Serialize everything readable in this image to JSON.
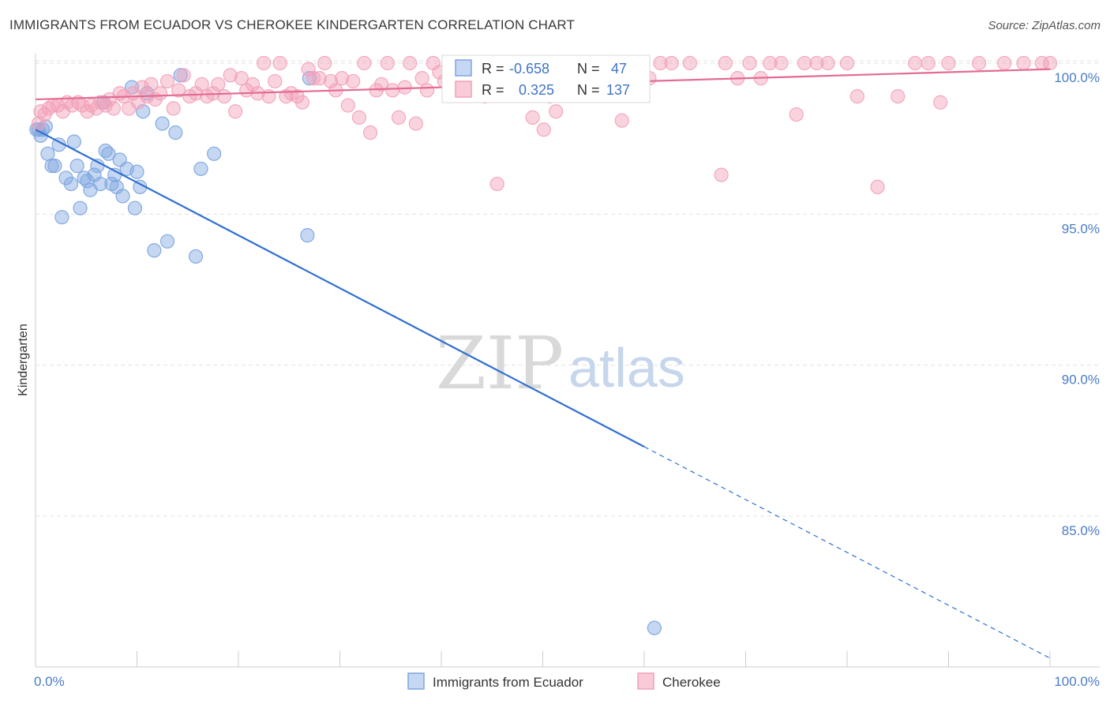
{
  "title": "IMMIGRANTS FROM ECUADOR VS CHEROKEE KINDERGARTEN CORRELATION CHART",
  "source": "Source: ZipAtlas.com",
  "watermark": {
    "zip": "ZIP",
    "atlas": "atlas"
  },
  "colors": {
    "series1": "#7ea6e0",
    "series1_line": "#2f6fd0",
    "series2": "#f2a0b8",
    "series2_line": "#e36b93",
    "tick": "#4a7cc6",
    "grid": "#e0e0e0"
  },
  "legend_box": {
    "r_label": "R =",
    "n_label": "N =",
    "rows": [
      {
        "r": "-0.658",
        "n": "47"
      },
      {
        "r": "0.325",
        "n": "137"
      }
    ]
  },
  "chart_data": {
    "type": "scatter",
    "title": "IMMIGRANTS FROM ECUADOR VS CHEROKEE KINDERGARTEN CORRELATION CHART",
    "xlabel": "",
    "ylabel": "Kindergarten",
    "xlim": [
      0,
      100
    ],
    "ylim": [
      80,
      100.8
    ],
    "x_tick_labels": [
      "0.0%",
      "100.0%"
    ],
    "y_ticks": [
      100,
      95,
      90,
      85
    ],
    "y_tick_labels": [
      "100.0%",
      "95.0%",
      "90.0%",
      "85.0%"
    ],
    "grid": true,
    "legend": "bottom-center",
    "series": [
      {
        "name": "Immigrants from Ecuador",
        "r": -0.658,
        "n": 47,
        "trend": {
          "x0": 0,
          "y0": 97.8,
          "x1": 100,
          "y1": 80.3,
          "solid_until_x": 60
        },
        "points": [
          [
            0.3,
            97.8
          ],
          [
            0.5,
            97.6
          ],
          [
            0.7,
            97.8
          ],
          [
            1.2,
            97.0
          ],
          [
            1.6,
            96.6
          ],
          [
            1.9,
            96.6
          ],
          [
            2.3,
            97.3
          ],
          [
            2.6,
            94.9
          ],
          [
            3.0,
            96.2
          ],
          [
            3.5,
            96.0
          ],
          [
            3.8,
            97.4
          ],
          [
            4.1,
            96.6
          ],
          [
            4.4,
            95.2
          ],
          [
            4.8,
            96.2
          ],
          [
            5.1,
            96.1
          ],
          [
            5.4,
            95.8
          ],
          [
            5.8,
            96.3
          ],
          [
            6.1,
            96.6
          ],
          [
            6.4,
            96.0
          ],
          [
            6.7,
            98.7
          ],
          [
            6.9,
            97.1
          ],
          [
            7.2,
            97.0
          ],
          [
            7.5,
            96.0
          ],
          [
            7.8,
            96.3
          ],
          [
            8.0,
            95.9
          ],
          [
            8.3,
            96.8
          ],
          [
            8.6,
            95.6
          ],
          [
            9.0,
            96.5
          ],
          [
            9.5,
            99.2
          ],
          [
            9.8,
            95.2
          ],
          [
            10.0,
            96.4
          ],
          [
            10.3,
            95.9
          ],
          [
            10.6,
            98.4
          ],
          [
            11.0,
            99.0
          ],
          [
            11.7,
            93.8
          ],
          [
            12.5,
            98.0
          ],
          [
            13.0,
            94.1
          ],
          [
            13.8,
            97.7
          ],
          [
            14.3,
            99.6
          ],
          [
            15.8,
            93.6
          ],
          [
            16.3,
            96.5
          ],
          [
            17.6,
            97.0
          ],
          [
            26.8,
            94.3
          ],
          [
            27.0,
            99.5
          ],
          [
            61.0,
            81.3
          ],
          [
            1.0,
            97.9
          ],
          [
            0.1,
            97.8
          ]
        ]
      },
      {
        "name": "Cherokee",
        "r": 0.325,
        "n": 137,
        "trend": {
          "x0": 0,
          "y0": 98.8,
          "x1": 100,
          "y1": 99.8
        },
        "points": [
          [
            0.3,
            98.0
          ],
          [
            0.5,
            98.4
          ],
          [
            0.9,
            98.3
          ],
          [
            1.3,
            98.5
          ],
          [
            1.7,
            98.6
          ],
          [
            2.2,
            98.6
          ],
          [
            2.7,
            98.4
          ],
          [
            3.1,
            98.7
          ],
          [
            3.6,
            98.6
          ],
          [
            4.2,
            98.7
          ],
          [
            4.6,
            98.6
          ],
          [
            5.1,
            98.4
          ],
          [
            5.5,
            98.6
          ],
          [
            6.0,
            98.5
          ],
          [
            6.4,
            98.7
          ],
          [
            6.9,
            98.6
          ],
          [
            7.3,
            98.8
          ],
          [
            7.7,
            98.5
          ],
          [
            8.3,
            99.0
          ],
          [
            8.7,
            98.9
          ],
          [
            9.2,
            98.5
          ],
          [
            9.6,
            99.0
          ],
          [
            10.1,
            98.7
          ],
          [
            10.5,
            99.2
          ],
          [
            11.0,
            98.9
          ],
          [
            11.4,
            99.3
          ],
          [
            11.8,
            98.8
          ],
          [
            12.3,
            99.0
          ],
          [
            13.0,
            99.4
          ],
          [
            13.6,
            98.5
          ],
          [
            14.1,
            99.1
          ],
          [
            14.6,
            99.6
          ],
          [
            15.2,
            98.9
          ],
          [
            15.8,
            99.0
          ],
          [
            16.4,
            99.3
          ],
          [
            16.9,
            98.9
          ],
          [
            17.5,
            99.0
          ],
          [
            18.0,
            99.3
          ],
          [
            18.6,
            98.9
          ],
          [
            19.2,
            99.6
          ],
          [
            19.7,
            98.4
          ],
          [
            20.3,
            99.5
          ],
          [
            20.8,
            99.1
          ],
          [
            21.4,
            99.3
          ],
          [
            21.9,
            99.0
          ],
          [
            22.5,
            100.0
          ],
          [
            23.0,
            98.9
          ],
          [
            23.6,
            99.4
          ],
          [
            24.1,
            100.0
          ],
          [
            24.7,
            98.9
          ],
          [
            25.2,
            99.0
          ],
          [
            25.8,
            98.9
          ],
          [
            26.3,
            98.7
          ],
          [
            26.9,
            99.8
          ],
          [
            27.4,
            99.5
          ],
          [
            28.0,
            99.5
          ],
          [
            28.5,
            100.0
          ],
          [
            29.1,
            99.4
          ],
          [
            29.6,
            99.1
          ],
          [
            30.2,
            99.5
          ],
          [
            30.8,
            98.6
          ],
          [
            31.3,
            99.4
          ],
          [
            31.9,
            98.2
          ],
          [
            32.4,
            100.0
          ],
          [
            33.0,
            97.7
          ],
          [
            33.6,
            99.1
          ],
          [
            34.1,
            99.3
          ],
          [
            34.7,
            100.0
          ],
          [
            35.2,
            99.1
          ],
          [
            35.8,
            98.2
          ],
          [
            36.4,
            99.2
          ],
          [
            36.9,
            100.0
          ],
          [
            37.5,
            98.0
          ],
          [
            38.1,
            99.5
          ],
          [
            38.6,
            99.1
          ],
          [
            39.2,
            100.0
          ],
          [
            39.8,
            99.7
          ],
          [
            40.3,
            99.4
          ],
          [
            40.9,
            99.2
          ],
          [
            41.5,
            99.8
          ],
          [
            42.0,
            100.0
          ],
          [
            42.6,
            99.4
          ],
          [
            43.2,
            100.0
          ],
          [
            43.7,
            99.0
          ],
          [
            44.3,
            98.9
          ],
          [
            44.9,
            100.0
          ],
          [
            45.5,
            96.0
          ],
          [
            46.0,
            100.0
          ],
          [
            46.6,
            99.1
          ],
          [
            47.2,
            99.4
          ],
          [
            47.8,
            100.0
          ],
          [
            48.4,
            99.3
          ],
          [
            49.0,
            98.2
          ],
          [
            49.5,
            100.0
          ],
          [
            50.1,
            97.8
          ],
          [
            50.7,
            98.9
          ],
          [
            51.3,
            98.4
          ],
          [
            51.9,
            100.0
          ],
          [
            52.5,
            99.2
          ],
          [
            53.0,
            100.0
          ],
          [
            53.6,
            99.6
          ],
          [
            54.2,
            99.9
          ],
          [
            54.8,
            100.0
          ],
          [
            55.4,
            99.1
          ],
          [
            56.0,
            100.0
          ],
          [
            56.6,
            99.7
          ],
          [
            57.2,
            100.0
          ],
          [
            57.8,
            98.1
          ],
          [
            58.4,
            99.6
          ],
          [
            60.5,
            99.5
          ],
          [
            61.6,
            100.0
          ],
          [
            62.7,
            100.0
          ],
          [
            64.5,
            100.0
          ],
          [
            67.6,
            96.3
          ],
          [
            68.0,
            100.0
          ],
          [
            69.2,
            99.5
          ],
          [
            70.4,
            100.0
          ],
          [
            71.5,
            99.5
          ],
          [
            72.4,
            100.0
          ],
          [
            73.5,
            100.0
          ],
          [
            75.0,
            98.3
          ],
          [
            75.8,
            100.0
          ],
          [
            77.0,
            100.0
          ],
          [
            78.1,
            100.0
          ],
          [
            80.0,
            100.0
          ],
          [
            81.0,
            98.9
          ],
          [
            83.0,
            95.9
          ],
          [
            85.0,
            98.9
          ],
          [
            86.7,
            100.0
          ],
          [
            88.0,
            100.0
          ],
          [
            89.2,
            98.7
          ],
          [
            90.0,
            100.0
          ],
          [
            93.0,
            100.0
          ],
          [
            95.5,
            100.0
          ],
          [
            97.4,
            100.0
          ],
          [
            99.2,
            100.0
          ],
          [
            100.0,
            100.0
          ]
        ]
      }
    ]
  }
}
